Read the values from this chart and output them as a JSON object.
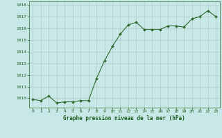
{
  "x": [
    0,
    1,
    2,
    3,
    4,
    5,
    6,
    7,
    8,
    9,
    10,
    11,
    12,
    13,
    14,
    15,
    16,
    17,
    18,
    19,
    20,
    21,
    22,
    23
  ],
  "y": [
    1009.9,
    1009.8,
    1010.2,
    1009.6,
    1009.7,
    1009.7,
    1009.8,
    1009.8,
    1011.7,
    1013.2,
    1014.45,
    1015.5,
    1016.3,
    1016.5,
    1015.9,
    1015.9,
    1015.9,
    1016.2,
    1016.2,
    1016.1,
    1016.8,
    1017.0,
    1017.5,
    1017.0
  ],
  "line_color": "#2d6a2d",
  "marker_color": "#2d6a2d",
  "bg_color": "#c8e8e8",
  "grid_color": "#b0c8c8",
  "xlabel": "Graphe pression niveau de la mer (hPa)",
  "xlabel_color": "#1a5c1a",
  "tick_label_color": "#1a5c1a",
  "ylim_min": 1009.2,
  "ylim_max": 1018.3,
  "yticks": [
    1010,
    1011,
    1012,
    1013,
    1014,
    1015,
    1016,
    1017,
    1018
  ],
  "xticks": [
    0,
    1,
    2,
    3,
    4,
    5,
    6,
    7,
    8,
    9,
    10,
    11,
    12,
    13,
    14,
    15,
    16,
    17,
    18,
    19,
    20,
    21,
    22,
    23
  ]
}
